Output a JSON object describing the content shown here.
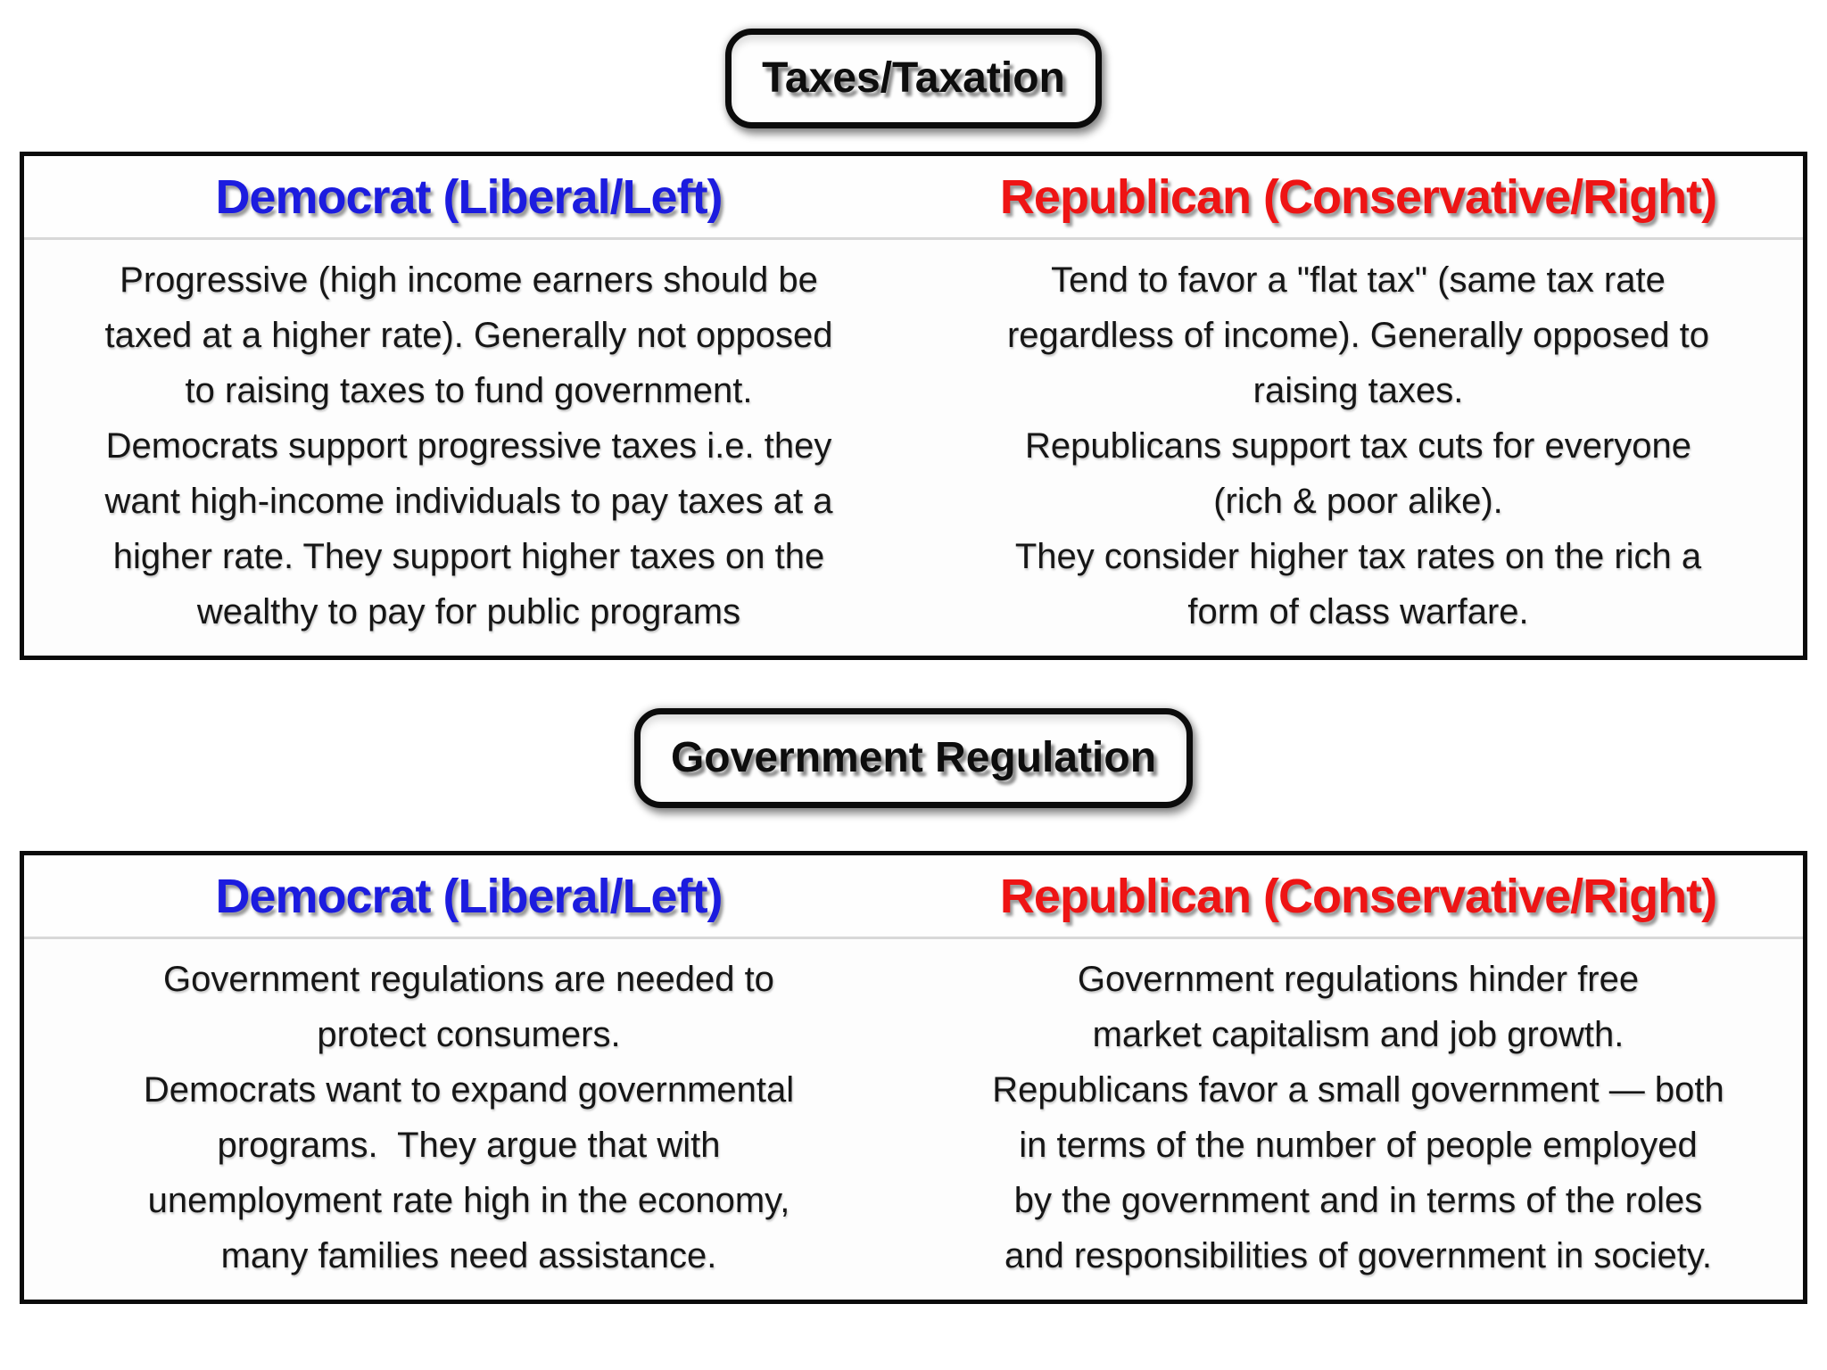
{
  "colors": {
    "democrat_blue": "#1c1cdf",
    "republican_red": "#ee1414",
    "border_black": "#0b0b0b",
    "header_separator_gray": "#d8d8d8",
    "background": "#ffffff"
  },
  "sections": [
    {
      "title": "Taxes/Taxation",
      "table": {
        "headers": [
          {
            "label": "Democrat (Liberal/Left)"
          },
          {
            "label": "Republican (Conservative/Right)"
          }
        ],
        "cells": [
          {
            "text": "Progressive (high income earners should be\ntaxed at a higher rate). Generally not opposed\nto raising taxes to fund government.\nDemocrats support progressive taxes i.e. they\nwant high-income individuals to pay taxes at a\nhigher rate. They support higher taxes on the\nwealthy to pay for public programs"
          },
          {
            "text": "Tend to favor a \"flat tax\" (same tax rate\nregardless of income). Generally opposed to\nraising taxes.\nRepublicans support tax cuts for everyone\n(rich & poor alike).\nThey consider higher tax rates on the rich a\nform of class warfare."
          }
        ]
      }
    },
    {
      "title": "Government Regulation",
      "table": {
        "headers": [
          {
            "label": "Democrat (Liberal/Left)"
          },
          {
            "label": "Republican (Conservative/Right)"
          }
        ],
        "cells": [
          {
            "text": "Government regulations are needed to\nprotect consumers.\nDemocrats want to expand governmental\nprograms.  They argue that with\nunemployment rate high in the economy,\nmany families need assistance."
          },
          {
            "text": "Government regulations hinder free\nmarket capitalism and job growth.\nRepublicans favor a small government — both\nin terms of the number of people employed\nby the government and in terms of the roles\nand responsibilities of government in society."
          }
        ]
      }
    }
  ]
}
